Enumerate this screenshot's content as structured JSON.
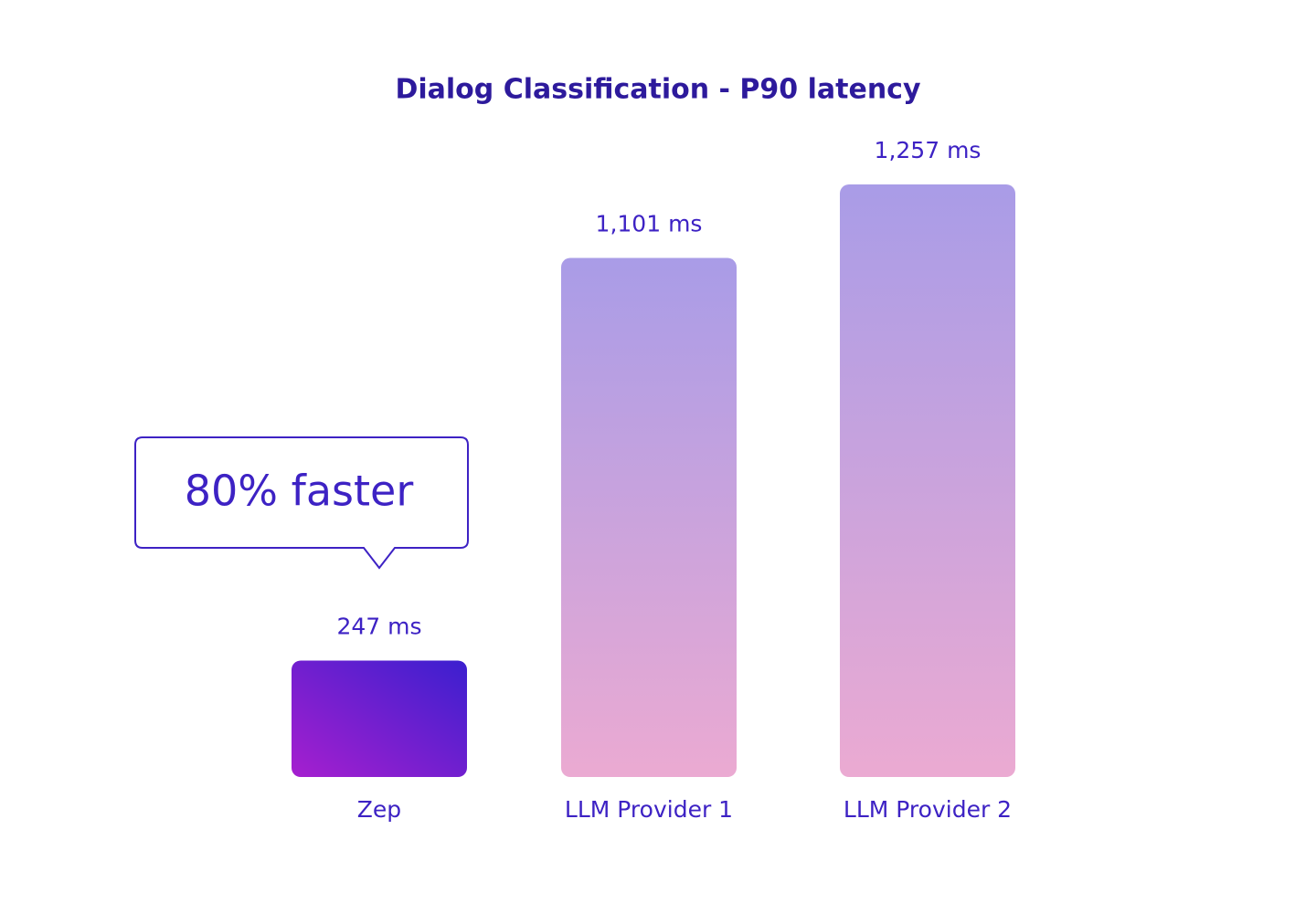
{
  "chart_data": {
    "type": "bar",
    "title": "Dialog Classification - P90 latency",
    "categories": [
      "Zep",
      "LLM Provider 1",
      "LLM Provider 2"
    ],
    "values": [
      247,
      1101,
      1257
    ],
    "value_labels": [
      "247 ms",
      "1,101 ms",
      "1,257 ms"
    ],
    "annotation": "80% faster"
  }
}
